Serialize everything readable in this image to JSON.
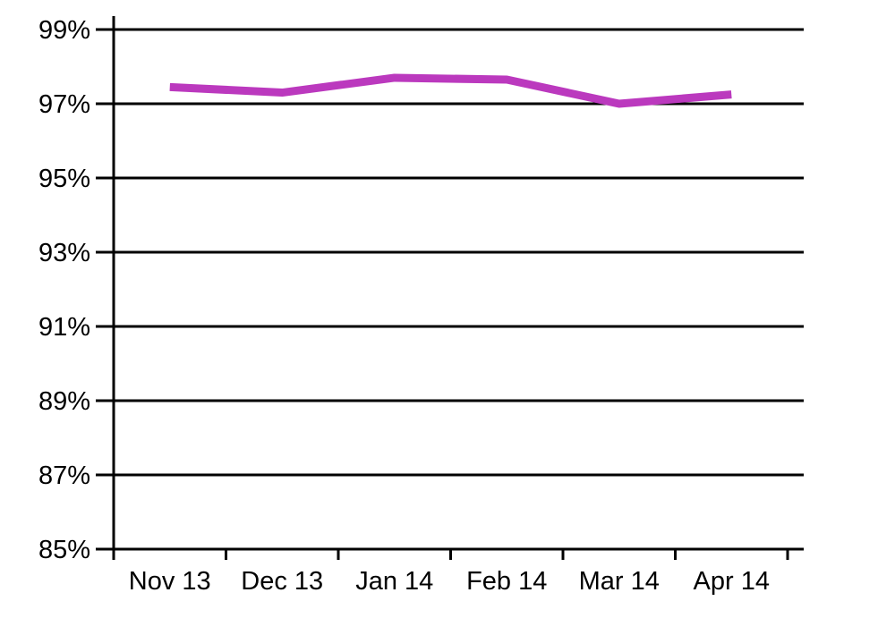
{
  "chart_data": {
    "type": "line",
    "title": "",
    "xlabel": "",
    "ylabel": "",
    "categories": [
      "Nov 13",
      "Dec 13",
      "Jan 14",
      "Feb 14",
      "Mar 14",
      "Apr 14"
    ],
    "values": [
      97.45,
      97.3,
      97.7,
      97.65,
      97.0,
      97.25
    ],
    "y_tick_values": [
      85,
      87,
      89,
      91,
      93,
      95,
      97,
      99
    ],
    "y_tick_labels": [
      "85%",
      "87%",
      "89%",
      "91%",
      "93%",
      "95%",
      "97%",
      "99%"
    ],
    "ylim": [
      85,
      99.4
    ],
    "grid": true,
    "legend": "none",
    "line_color": "#BB39BE"
  },
  "colors": {
    "background": "#FFFFFF",
    "axis": "#000000",
    "gridline": "#000000",
    "tick_label": "#000000",
    "series": "#BB39BE"
  }
}
